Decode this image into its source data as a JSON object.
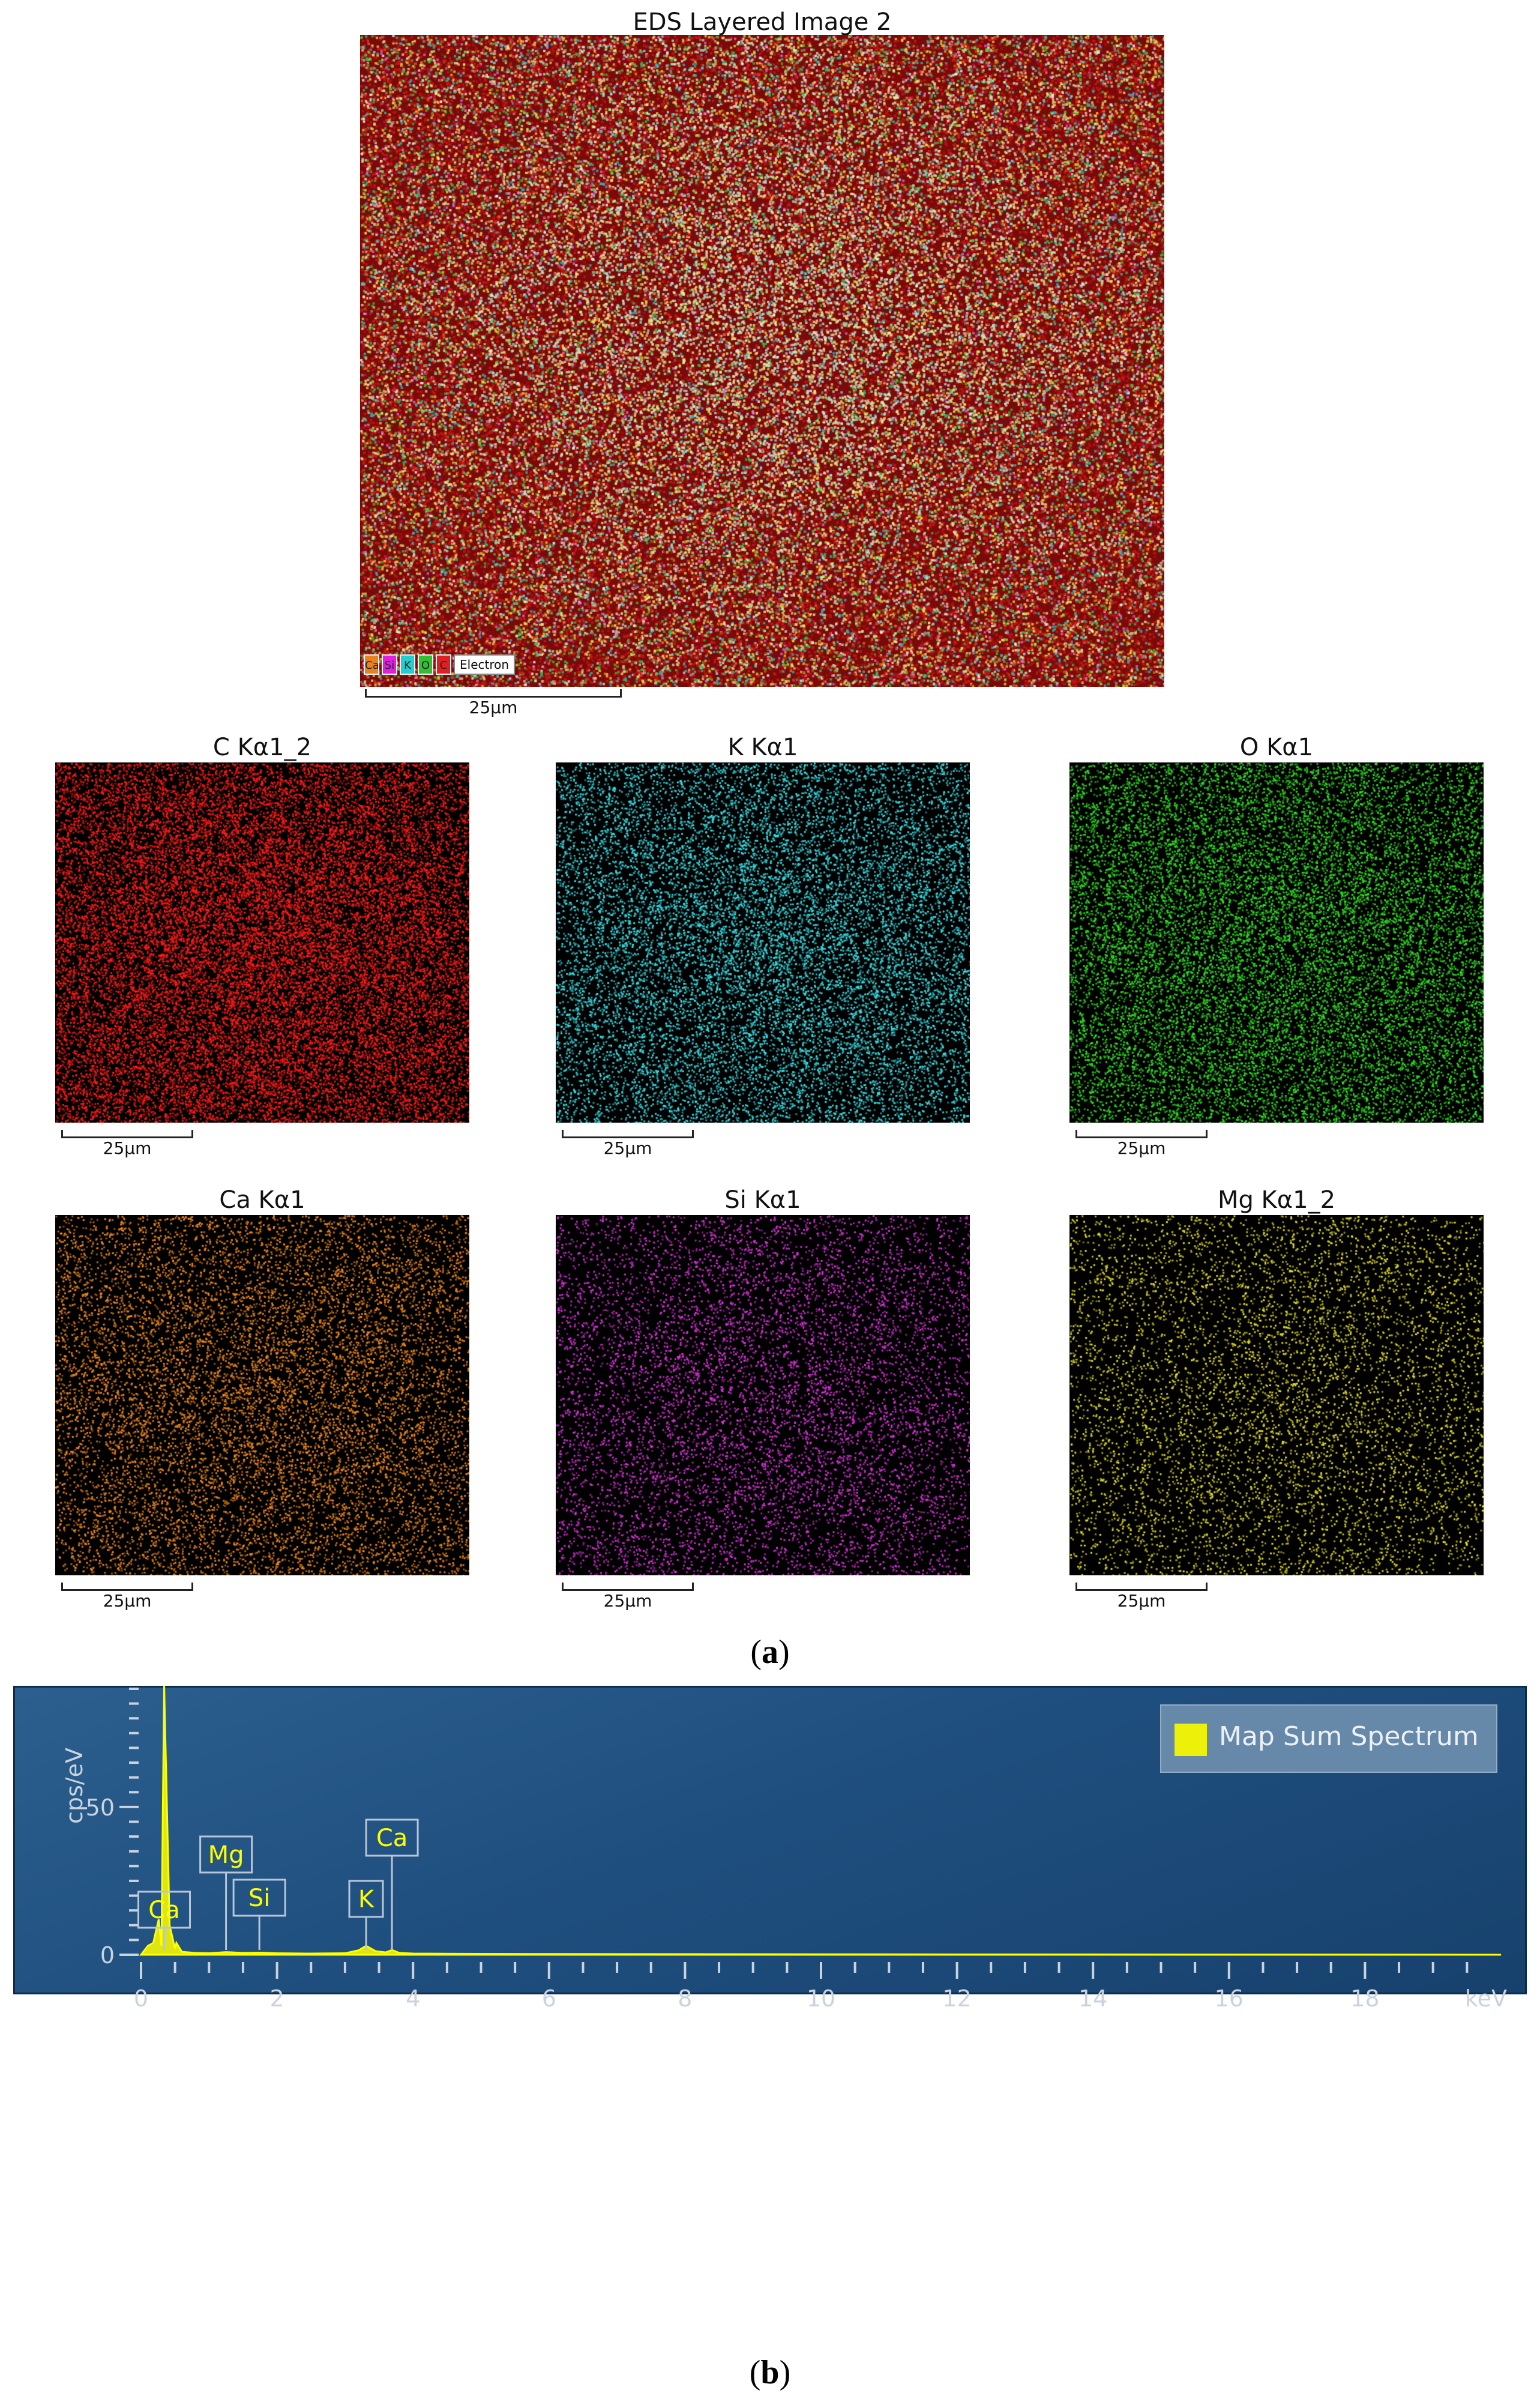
{
  "figure": {
    "layered_title": "EDS Layered Image 2",
    "layered_legend": [
      "Ca",
      "Si",
      "K",
      "O",
      "C"
    ],
    "layered_legend_colors": [
      "#e8821e",
      "#e020e0",
      "#20d0d0",
      "#30c030",
      "#e02020"
    ],
    "electron_label": "Electron",
    "scale_label": "25µm",
    "maps": [
      {
        "title": "C Kα1_2",
        "color": "#ff1a1a",
        "density": 0.62
      },
      {
        "title": "K Kα1",
        "color": "#35e0e6",
        "density": 0.38
      },
      {
        "title": "O Kα1",
        "color": "#2ee01f",
        "density": 0.42
      },
      {
        "title": "Ca Kα1",
        "color": "#f08a18",
        "density": 0.3
      },
      {
        "title": "Si Kα1",
        "color": "#e030e0",
        "density": 0.22
      },
      {
        "title": "Mg Kα1_2",
        "color": "#e6e21a",
        "density": 0.18
      }
    ],
    "caption_a": "a",
    "caption_b": "b"
  },
  "chart_data": {
    "type": "line",
    "legend": "Map Sum Spectrum",
    "legend_placement": "top-right",
    "series_color": "#ffff00",
    "xlabel": "keV",
    "ylabel": "cps/eV",
    "xlim": [
      0,
      20
    ],
    "ylim": [
      0,
      90
    ],
    "x_ticks": [
      0,
      2,
      4,
      6,
      8,
      10,
      12,
      14,
      16,
      18
    ],
    "y_ticks_labeled": [
      0,
      50
    ],
    "x": [
      0.0,
      0.1,
      0.18,
      0.26,
      0.3,
      0.34,
      0.42,
      0.5,
      0.52,
      0.6,
      0.8,
      1.0,
      1.25,
      1.5,
      1.74,
      2.0,
      2.5,
      3.0,
      3.2,
      3.31,
      3.45,
      3.6,
      3.69,
      3.8,
      4.0,
      5.0,
      6.0,
      8.0,
      10.0,
      12.0,
      14.0,
      16.0,
      18.0,
      20.0
    ],
    "y": [
      0,
      3,
      4,
      12,
      3,
      91,
      10,
      2,
      4,
      1,
      0.6,
      0.5,
      0.9,
      0.6,
      0.7,
      0.5,
      0.4,
      0.5,
      1.5,
      3.0,
      1.2,
      0.8,
      1.6,
      0.6,
      0.4,
      0.3,
      0.25,
      0.2,
      0.15,
      0.1,
      0.1,
      0.05,
      0.05,
      0
    ],
    "annotations": [
      {
        "label": "Ca",
        "x": 0.34
      },
      {
        "label": "Mg",
        "x": 1.25
      },
      {
        "label": "Si",
        "x": 1.74
      },
      {
        "label": "K",
        "x": 3.31
      },
      {
        "label": "Ca",
        "x": 3.69
      }
    ]
  }
}
